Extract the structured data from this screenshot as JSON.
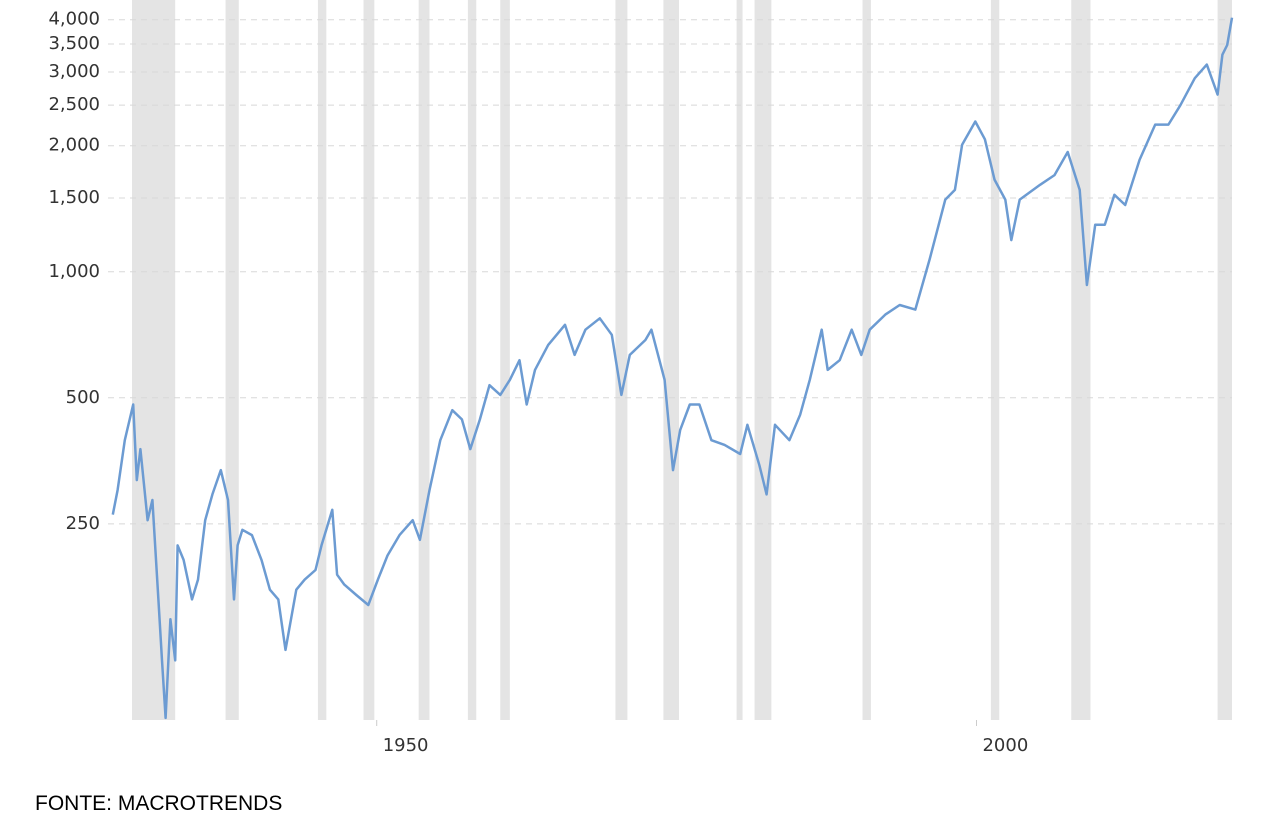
{
  "chart_data": {
    "type": "line",
    "log_scale": true,
    "grid": true,
    "color": "#6c9bd2",
    "recession_color": "#e4e4e4",
    "xlim": [
      1927.6,
      2021.3
    ],
    "xticks": [
      1950,
      2000
    ],
    "ylim": [
      85,
      4150
    ],
    "yticks": [
      250,
      500,
      {
        "value": 1000,
        "label": "1,000"
      },
      {
        "value": 1500,
        "label": "1,500"
      },
      {
        "value": 2000,
        "label": "2,000"
      },
      {
        "value": 2500,
        "label": "2,500"
      },
      {
        "value": 3000,
        "label": "3,000"
      },
      {
        "value": 3500,
        "label": "3,500"
      },
      {
        "value": 4000,
        "label": "4,000"
      }
    ],
    "recessions": [
      [
        1929.6,
        1933.2
      ],
      [
        1937.4,
        1938.5
      ],
      [
        1945.1,
        1945.8
      ],
      [
        1948.9,
        1949.8
      ],
      [
        1953.5,
        1954.4
      ],
      [
        1957.6,
        1958.3
      ],
      [
        1960.3,
        1961.1
      ],
      [
        1969.9,
        1970.9
      ],
      [
        1973.9,
        1975.2
      ],
      [
        1980.0,
        1980.5
      ],
      [
        1981.5,
        1982.9
      ],
      [
        1990.5,
        1991.2
      ],
      [
        2001.2,
        2001.9
      ],
      [
        2007.9,
        2009.5
      ],
      [
        2020.1,
        2021.3
      ]
    ],
    "x": [
      1928.0,
      1928.4,
      1929.0,
      1929.7,
      1930.0,
      1930.3,
      1930.9,
      1931.3,
      1931.8,
      1932.1,
      1932.4,
      1932.8,
      1933.2,
      1933.4,
      1933.9,
      1934.6,
      1935.1,
      1935.7,
      1936.3,
      1937.0,
      1937.6,
      1938.1,
      1938.4,
      1938.8,
      1939.6,
      1940.4,
      1941.1,
      1941.8,
      1942.4,
      1943.3,
      1944.0,
      1944.9,
      1945.4,
      1946.3,
      1946.7,
      1947.3,
      1948.3,
      1949.3,
      1950.1,
      1950.9,
      1951.9,
      1953.0,
      1953.6,
      1954.4,
      1955.3,
      1956.3,
      1957.1,
      1957.8,
      1958.6,
      1959.4,
      1960.3,
      1961.1,
      1961.9,
      1962.5,
      1963.2,
      1964.3,
      1965.7,
      1966.5,
      1967.4,
      1968.6,
      1969.6,
      1970.4,
      1971.1,
      1972.4,
      1972.9,
      1974.0,
      1974.7,
      1975.3,
      1976.1,
      1976.9,
      1977.9,
      1979.0,
      1980.3,
      1980.9,
      1981.9,
      1982.5,
      1983.2,
      1984.4,
      1985.3,
      1986.1,
      1987.1,
      1987.6,
      1988.6,
      1989.6,
      1990.4,
      1991.1,
      1992.4,
      1993.6,
      1994.9,
      1996.1,
      1997.4,
      1998.2,
      1998.8,
      1999.9,
      2000.7,
      2001.5,
      2002.4,
      2002.9,
      2003.6,
      2005.3,
      2006.5,
      2007.6,
      2008.6,
      2009.2,
      2009.9,
      2010.7,
      2011.5,
      2012.4,
      2013.6,
      2014.9,
      2016.0,
      2017.0,
      2018.2,
      2019.2,
      2020.1,
      2020.5,
      2020.9,
      2021.3
    ],
    "values": [
      263,
      301,
      396,
      482,
      318,
      377,
      255,
      285,
      165,
      118,
      86,
      148,
      118,
      222,
      205,
      165,
      184,
      255,
      294,
      336,
      285,
      165,
      222,
      242,
      235,
      205,
      174,
      165,
      125,
      174,
      184,
      194,
      222,
      270,
      189,
      179,
      169,
      160,
      184,
      210,
      235,
      255,
      229,
      301,
      396,
      467,
      444,
      377,
      444,
      536,
      508,
      552,
      615,
      482,
      583,
      669,
      747,
      633,
      727,
      774,
      707,
      508,
      633,
      687,
      727,
      552,
      336,
      419,
      482,
      482,
      396,
      386,
      367,
      431,
      345,
      294,
      431,
      396,
      456,
      552,
      727,
      583,
      615,
      727,
      633,
      727,
      790,
      833,
      812,
      1072,
      1487,
      1569,
      2010,
      2285,
      2072,
      1660,
      1487,
      1190,
      1487,
      1613,
      1702,
      1932,
      1569,
      930,
      1295,
      1295,
      1527,
      1444,
      1852,
      2247,
      2247,
      2500,
      2900,
      3125,
      2650,
      3300,
      3480,
      4044
    ]
  },
  "source": "FONTE: MACROTRENDS"
}
